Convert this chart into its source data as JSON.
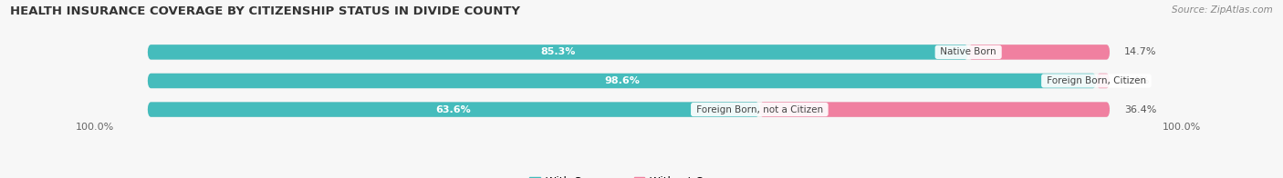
{
  "title": "HEALTH INSURANCE COVERAGE BY CITIZENSHIP STATUS IN DIVIDE COUNTY",
  "source": "Source: ZipAtlas.com",
  "categories": [
    "Native Born",
    "Foreign Born, Citizen",
    "Foreign Born, not a Citizen"
  ],
  "with_coverage": [
    85.3,
    98.6,
    63.6
  ],
  "without_coverage": [
    14.7,
    1.4,
    36.4
  ],
  "color_with": "#45BCBC",
  "color_without": "#F080A0",
  "color_bg_bar": "#E4E4E4",
  "color_fig_bg": "#F7F7F7",
  "title_fontsize": 9.5,
  "source_fontsize": 7.5,
  "legend_fontsize": 8.5,
  "label_fontsize_inside": 8,
  "label_fontsize_outside": 8,
  "cat_fontsize": 7.5,
  "left_label": "100.0%",
  "right_label": "100.0%",
  "figsize": [
    14.06,
    1.96
  ],
  "dpi": 100
}
